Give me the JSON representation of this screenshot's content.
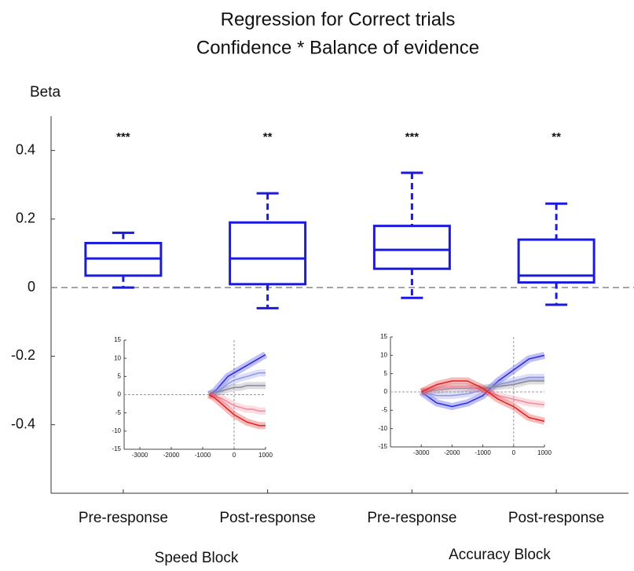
{
  "chart_data": [
    {
      "type": "box",
      "title": [
        "Regression for Correct trials",
        "Confidence * Balance of evidence"
      ],
      "ylabel": "Beta",
      "categories": [
        "Pre-response",
        "Post-response",
        "Pre-response",
        "Post-response"
      ],
      "groups": [
        "Speed Block",
        "Accuracy Block"
      ],
      "annotations": [
        "***",
        "**",
        "***",
        "**"
      ],
      "color": "#1a1ae0",
      "whisker_low": [
        0.0,
        -0.06,
        -0.03,
        -0.05
      ],
      "q1": [
        0.035,
        0.01,
        0.055,
        0.015
      ],
      "median": [
        0.085,
        0.085,
        0.11,
        0.035
      ],
      "q3": [
        0.13,
        0.19,
        0.18,
        0.14
      ],
      "whisker_high": [
        0.16,
        0.275,
        0.335,
        0.245
      ],
      "ylim": [
        -0.6,
        0.5
      ],
      "yticks": [
        -0.4,
        -0.2,
        0,
        0.2,
        0.4
      ],
      "hline": 0
    },
    {
      "type": "line",
      "x": [
        -800,
        -600,
        -400,
        -200,
        0,
        200,
        400,
        600,
        800,
        1000
      ],
      "xlim": [
        -3500,
        1000
      ],
      "xticks": [
        -3000,
        -2000,
        -1000,
        0,
        1000
      ],
      "ylim": [
        -15,
        15
      ],
      "yticks": [
        -15,
        -10,
        -5,
        0,
        5,
        10,
        15
      ],
      "series": [
        {
          "color": "#2a2ae0",
          "values": [
            0,
            1,
            3,
            5,
            6,
            7,
            8,
            9,
            10,
            11
          ]
        },
        {
          "color": "#8f95e8",
          "values": [
            0,
            0.5,
            1.5,
            3,
            4,
            4.5,
            5,
            5.5,
            6,
            6
          ]
        },
        {
          "color": "#8a8a9a",
          "values": [
            0,
            0.5,
            1,
            1.5,
            2,
            2,
            2.5,
            2.5,
            2.5,
            2.5
          ]
        },
        {
          "color": "#f08a9a",
          "values": [
            0,
            -0.5,
            -1,
            -2,
            -3,
            -3.5,
            -4,
            -4,
            -4.5,
            -4.5
          ]
        },
        {
          "color": "#e02020",
          "values": [
            0,
            -1,
            -2.5,
            -4,
            -5.5,
            -6.5,
            -7.5,
            -8,
            -8.5,
            -8.5
          ]
        }
      ]
    },
    {
      "type": "line",
      "x": [
        -3000,
        -2500,
        -2000,
        -1500,
        -1000,
        -500,
        0,
        500,
        1000
      ],
      "xlim": [
        -4000,
        1000
      ],
      "xticks": [
        -3000,
        -2000,
        -1000,
        0,
        1000
      ],
      "ylim": [
        -15,
        15
      ],
      "yticks": [
        -15,
        -10,
        -5,
        0,
        5,
        10,
        15
      ],
      "series": [
        {
          "color": "#2a2ae0",
          "values": [
            0,
            -3,
            -4,
            -3,
            -1,
            3,
            6,
            9,
            10
          ]
        },
        {
          "color": "#8f95e8",
          "values": [
            0,
            -1,
            -1,
            -0.5,
            0.5,
            2,
            3,
            4,
            4
          ]
        },
        {
          "color": "#8a8a9a",
          "values": [
            0,
            0.5,
            1,
            1,
            1,
            1.5,
            2,
            3,
            3
          ]
        },
        {
          "color": "#f08a9a",
          "values": [
            0,
            1,
            1.5,
            1.5,
            0.5,
            -1,
            -2,
            -3,
            -3.5
          ]
        },
        {
          "color": "#e02020",
          "values": [
            0,
            2,
            3,
            3,
            1,
            -2,
            -4,
            -7,
            -8
          ]
        }
      ]
    }
  ]
}
